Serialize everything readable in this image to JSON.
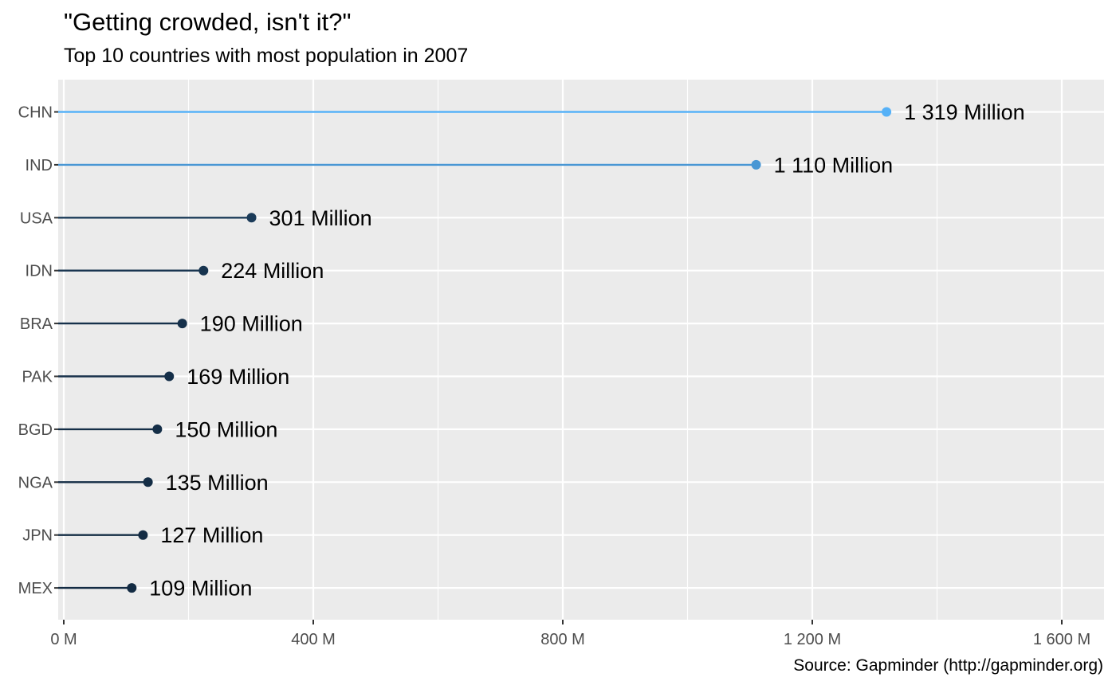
{
  "chart_data": {
    "type": "lollipop",
    "title": "\"Getting crowded, isn't it?\"",
    "subtitle": "Top 10 countries with most population in 2007",
    "caption": "Source: Gapminder (http://gapminder.org)",
    "xlim": [
      0,
      1670
    ],
    "x_ticks": [
      0,
      400,
      800,
      1200,
      1600
    ],
    "x_tick_labels": [
      "0 M",
      "400 M",
      "800 M",
      "1 200 M",
      "1 600 M"
    ],
    "categories": [
      "CHN",
      "IND",
      "USA",
      "IDN",
      "BRA",
      "PAK",
      "BGD",
      "NGA",
      "JPN",
      "MEX"
    ],
    "values": [
      1319,
      1110,
      301,
      224,
      190,
      169,
      150,
      135,
      127,
      109
    ],
    "labels": [
      "1 319 Million",
      "1 110 Million",
      "301 Million",
      "224 Million",
      "190 Million",
      "169 Million",
      "150 Million",
      "135 Million",
      "127 Million",
      "109 Million"
    ],
    "grid": true,
    "colors": {
      "panel": "#ebebeb",
      "grid": "#ffffff",
      "low": "#132b43",
      "high": "#56b1f7"
    }
  }
}
